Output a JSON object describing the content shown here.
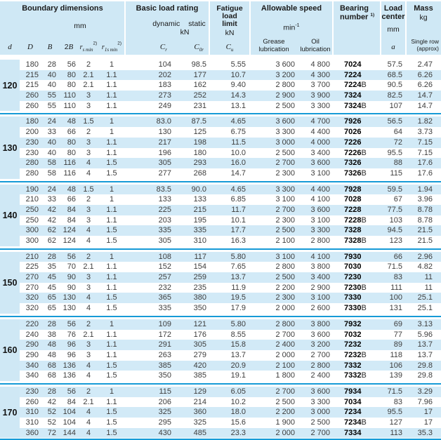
{
  "colors": {
    "header_band": "#cfe8f5",
    "row_stripe": "#d2eaf7",
    "separator_line": "#169bd7"
  },
  "header": {
    "boundary_title": "Boundary dimensions",
    "boundary_unit": "mm",
    "col_d": "d",
    "col_D": "D",
    "col_B": "B",
    "col_2B_digit": "2",
    "col_2B_letter": "B",
    "col_rs_base": "r",
    "col_rs_sub": "s min",
    "col_rs_sup": "2)",
    "col_r1s_base": "r",
    "col_r1s_sub": "1s min",
    "col_r1s_sup": "2)",
    "basic_title": "Basic load rating",
    "basic_dynamic": "dynamic",
    "basic_static": "static",
    "basic_unit": "kN",
    "col_cr_base": "C",
    "col_cr_sub": "r",
    "col_c0r_base": "C",
    "col_c0r_sub": "0r",
    "fatigue_line1": "Fatigue",
    "fatigue_line2": "load",
    "fatigue_line3": "limit",
    "fatigue_unit": "kN",
    "col_cu_base": "C",
    "col_cu_sub": "u",
    "speed_title": "Allowable speed",
    "speed_unit_base": "min",
    "speed_unit_sup": "-1",
    "grease_line1": "Grease",
    "grease_line2": "lubrication",
    "oil_line1": "Oil",
    "oil_line2": "lubrication",
    "bearing_line1": "Bearing",
    "bearing_line2": "number",
    "bearing_sup": "1)",
    "load_line1": "Load",
    "load_line2": "center",
    "load_unit": "mm",
    "col_a": "a",
    "mass_title": "Mass",
    "mass_unit": "kg",
    "mass_note1": "Single row",
    "mass_note2": "(approx)"
  },
  "groups": [
    {
      "d": "120",
      "rows": [
        [
          "180",
          "28",
          "56",
          "2",
          "1",
          "104",
          "98.5",
          "5.55",
          "3 600",
          "4 800",
          "7024",
          "",
          "57.5",
          "2.47"
        ],
        [
          "215",
          "40",
          "80",
          "2.1",
          "1.1",
          "202",
          "177",
          "10.7",
          "3 200",
          "4 300",
          "7224",
          "",
          "68.5",
          "6.26"
        ],
        [
          "215",
          "40",
          "80",
          "2.1",
          "1.1",
          "183",
          "162",
          "9.40",
          "2 800",
          "3 700",
          "7224",
          "B",
          "90.5",
          "6.26"
        ],
        [
          "260",
          "55",
          "110",
          "3",
          "1.1",
          "273",
          "252",
          "14.3",
          "2 900",
          "3 900",
          "7324",
          "",
          "82.5",
          "14.7"
        ],
        [
          "260",
          "55",
          "110",
          "3",
          "1.1",
          "249",
          "231",
          "13.1",
          "2 500",
          "3 300",
          "7324",
          "B",
          "107",
          "14.7"
        ]
      ]
    },
    {
      "d": "130",
      "rows": [
        [
          "180",
          "24",
          "48",
          "1.5",
          "1",
          "83.0",
          "87.5",
          "4.65",
          "3 600",
          "4 700",
          "7926",
          "",
          "56.5",
          "1.82"
        ],
        [
          "200",
          "33",
          "66",
          "2",
          "1",
          "130",
          "125",
          "6.75",
          "3 300",
          "4 400",
          "7026",
          "",
          "64",
          "3.73"
        ],
        [
          "230",
          "40",
          "80",
          "3",
          "1.1",
          "217",
          "198",
          "11.5",
          "3 000",
          "4 000",
          "7226",
          "",
          "72",
          "7.15"
        ],
        [
          "230",
          "40",
          "80",
          "3",
          "1.1",
          "196",
          "180",
          "10.0",
          "2 500",
          "3 400",
          "7226",
          "B",
          "95.5",
          "7.15"
        ],
        [
          "280",
          "58",
          "116",
          "4",
          "1.5",
          "305",
          "293",
          "16.0",
          "2 700",
          "3 600",
          "7326",
          "",
          "88",
          "17.6"
        ],
        [
          "280",
          "58",
          "116",
          "4",
          "1.5",
          "277",
          "268",
          "14.7",
          "2 300",
          "3 100",
          "7326",
          "B",
          "115",
          "17.6"
        ]
      ]
    },
    {
      "d": "140",
      "rows": [
        [
          "190",
          "24",
          "48",
          "1.5",
          "1",
          "83.5",
          "90.0",
          "4.65",
          "3 300",
          "4 400",
          "7928",
          "",
          "59.5",
          "1.94"
        ],
        [
          "210",
          "33",
          "66",
          "2",
          "1",
          "133",
          "133",
          "6.85",
          "3 100",
          "4 100",
          "7028",
          "",
          "67",
          "3.96"
        ],
        [
          "250",
          "42",
          "84",
          "3",
          "1.1",
          "225",
          "215",
          "11.7",
          "2 700",
          "3 600",
          "7228",
          "",
          "77.5",
          "8.78"
        ],
        [
          "250",
          "42",
          "84",
          "3",
          "1.1",
          "203",
          "195",
          "10.1",
          "2 300",
          "3 100",
          "7228",
          "B",
          "103",
          "8.78"
        ],
        [
          "300",
          "62",
          "124",
          "4",
          "1.5",
          "335",
          "335",
          "17.7",
          "2 500",
          "3 300",
          "7328",
          "",
          "94.5",
          "21.5"
        ],
        [
          "300",
          "62",
          "124",
          "4",
          "1.5",
          "305",
          "310",
          "16.3",
          "2 100",
          "2 800",
          "7328",
          "B",
          "123",
          "21.5"
        ]
      ]
    },
    {
      "d": "150",
      "rows": [
        [
          "210",
          "28",
          "56",
          "2",
          "1",
          "108",
          "117",
          "5.80",
          "3 100",
          "4 100",
          "7930",
          "",
          "66",
          "2.96"
        ],
        [
          "225",
          "35",
          "70",
          "2.1",
          "1.1",
          "152",
          "154",
          "7.65",
          "2 800",
          "3 800",
          "7030",
          "",
          "71.5",
          "4.82"
        ],
        [
          "270",
          "45",
          "90",
          "3",
          "1.1",
          "257",
          "259",
          "13.7",
          "2 500",
          "3 400",
          "7230",
          "",
          "83",
          "11"
        ],
        [
          "270",
          "45",
          "90",
          "3",
          "1.1",
          "232",
          "235",
          "11.9",
          "2 200",
          "2 900",
          "7230",
          "B",
          "111",
          "11"
        ],
        [
          "320",
          "65",
          "130",
          "4",
          "1.5",
          "365",
          "380",
          "19.5",
          "2 300",
          "3 100",
          "7330",
          "",
          "100",
          "25.1"
        ],
        [
          "320",
          "65",
          "130",
          "4",
          "1.5",
          "335",
          "350",
          "17.9",
          "2 000",
          "2 600",
          "7330",
          "B",
          "131",
          "25.1"
        ]
      ]
    },
    {
      "d": "160",
      "rows": [
        [
          "220",
          "28",
          "56",
          "2",
          "1",
          "109",
          "121",
          "5.80",
          "2 800",
          "3 800",
          "7932",
          "",
          "69",
          "3.13"
        ],
        [
          "240",
          "38",
          "76",
          "2.1",
          "1.1",
          "172",
          "176",
          "8.55",
          "2 700",
          "3 600",
          "7032",
          "",
          "77",
          "5.96"
        ],
        [
          "290",
          "48",
          "96",
          "3",
          "1.1",
          "291",
          "305",
          "15.8",
          "2 400",
          "3 200",
          "7232",
          "",
          "89",
          "13.7"
        ],
        [
          "290",
          "48",
          "96",
          "3",
          "1.1",
          "263",
          "279",
          "13.7",
          "2 000",
          "2 700",
          "7232",
          "B",
          "118",
          "13.7"
        ],
        [
          "340",
          "68",
          "136",
          "4",
          "1.5",
          "385",
          "420",
          "20.9",
          "2 100",
          "2 800",
          "7332",
          "",
          "106",
          "29.8"
        ],
        [
          "340",
          "68",
          "136",
          "4",
          "1.5",
          "350",
          "385",
          "19.1",
          "1 800",
          "2 400",
          "7332",
          "B",
          "139",
          "29.8"
        ]
      ]
    },
    {
      "d": "170",
      "rows": [
        [
          "230",
          "28",
          "56",
          "2",
          "1",
          "115",
          "129",
          "6.05",
          "2 700",
          "3 600",
          "7934",
          "",
          "71.5",
          "3.29"
        ],
        [
          "260",
          "42",
          "84",
          "2.1",
          "1.1",
          "206",
          "214",
          "10.2",
          "2 500",
          "3 300",
          "7034",
          "",
          "83",
          "7.96"
        ],
        [
          "310",
          "52",
          "104",
          "4",
          "1.5",
          "325",
          "360",
          "18.0",
          "2 200",
          "3 000",
          "7234",
          "",
          "95.5",
          "17"
        ],
        [
          "310",
          "52",
          "104",
          "4",
          "1.5",
          "295",
          "325",
          "15.6",
          "1 900",
          "2 500",
          "7234",
          "B",
          "127",
          "17"
        ],
        [
          "360",
          "72",
          "144",
          "4",
          "1.5",
          "430",
          "485",
          "23.3",
          "2 000",
          "2 700",
          "7334",
          "",
          "113",
          "35.3"
        ]
      ]
    }
  ]
}
